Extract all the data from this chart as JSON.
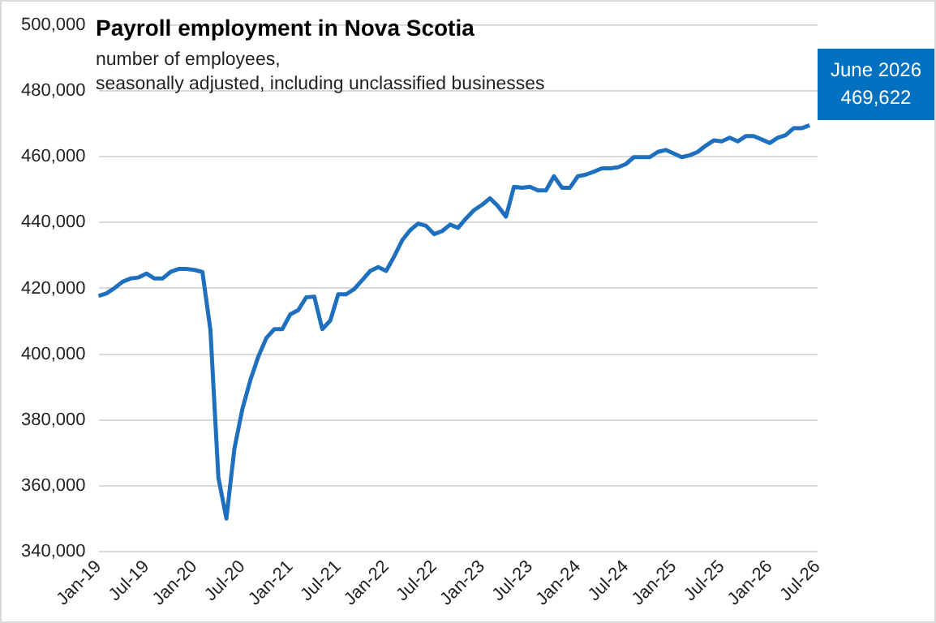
{
  "chart_data": {
    "type": "line",
    "title": "Payroll employment in Nova Scotia",
    "subtitle": "number of employees,\nseasonally adjusted, including unclassified businesses",
    "categories": [
      "Jan-19",
      null,
      null,
      null,
      null,
      null,
      "Jul-19",
      null,
      null,
      null,
      null,
      null,
      "Jan-20",
      null,
      null,
      null,
      null,
      null,
      "Jul-20",
      null,
      null,
      null,
      null,
      null,
      "Jan-21",
      null,
      null,
      null,
      null,
      null,
      "Jul-21",
      null,
      null,
      null,
      null,
      null,
      "Jan-22",
      null,
      null,
      null,
      null,
      null,
      "Jul-22",
      null,
      null,
      null,
      null,
      null,
      "Jan-23",
      null,
      null,
      null,
      null,
      null,
      "Jul-23",
      null,
      null,
      null,
      null,
      null,
      "Jan-24",
      null,
      null,
      null,
      null,
      null,
      "Jul-24",
      null,
      null,
      null,
      null,
      null,
      "Jan-25",
      null,
      null,
      null,
      null,
      null,
      "Jul-25",
      null,
      null,
      null,
      null,
      null,
      "Jan-26",
      null,
      null,
      null,
      null,
      null,
      "Jul-26"
    ],
    "series": [
      {
        "color": "#1f6fbf",
        "values": [
          417700,
          418500,
          420100,
          422000,
          423000,
          423300,
          424500,
          423000,
          423000,
          425000,
          425900,
          425900,
          425600,
          425000,
          407300,
          362400,
          350000,
          371200,
          383300,
          392100,
          399300,
          404900,
          407600,
          407600,
          412100,
          413400,
          417300,
          417500,
          407600,
          410200,
          418200,
          418200,
          419800,
          422500,
          425300,
          426500,
          425300,
          429700,
          434600,
          437700,
          439700,
          439000,
          436500,
          437400,
          439400,
          438400,
          441300,
          443800,
          445400,
          447400,
          445000,
          441800,
          450900,
          450600,
          450900,
          449800,
          449800,
          454100,
          450600,
          450600,
          454100,
          454600,
          455500,
          456500,
          456500,
          456800,
          457800,
          459900,
          459900,
          459900,
          461500,
          462100,
          461000,
          459900,
          460500,
          461500,
          463400,
          465000,
          464700,
          465800,
          464700,
          466300,
          466300,
          465300,
          464200,
          465800,
          466600,
          468700,
          468700,
          469622,
          null
        ]
      }
    ],
    "ylim": [
      340000,
      500000
    ],
    "yticks": [
      {
        "value": 340000,
        "label": "340,000"
      },
      {
        "value": 360000,
        "label": "360,000"
      },
      {
        "value": 380000,
        "label": "380,000"
      },
      {
        "value": 400000,
        "label": "400,000"
      },
      {
        "value": 420000,
        "label": "420,000"
      },
      {
        "value": 440000,
        "label": "440,000"
      },
      {
        "value": 460000,
        "label": "460,000"
      },
      {
        "value": 480000,
        "label": "480,000"
      },
      {
        "value": 500000,
        "label": "500,000"
      }
    ],
    "grid": "y",
    "legend": false,
    "marker": "none",
    "line_style": "solid",
    "annotations": [
      "June 2026\n469,622"
    ]
  }
}
